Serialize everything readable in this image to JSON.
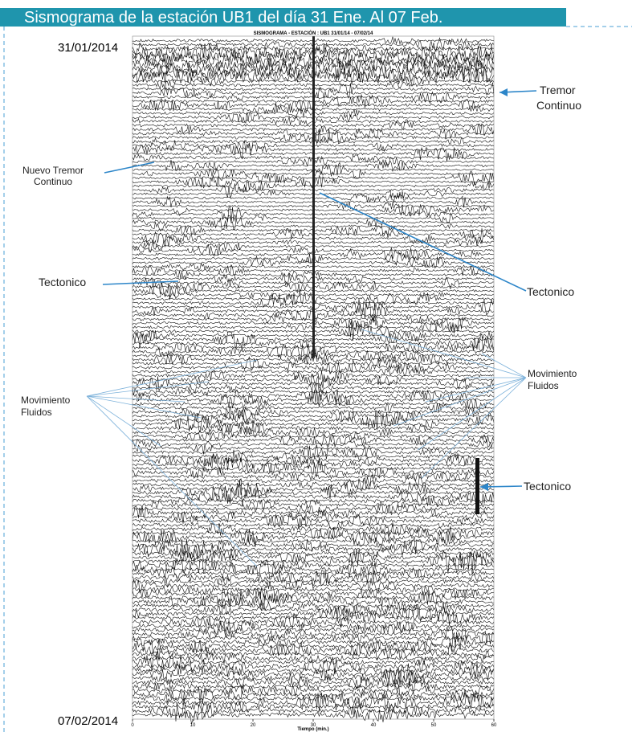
{
  "header": {
    "title": "Sismograma de la estación UB1 del día 31 Ene. Al 07 Feb."
  },
  "figure": {
    "title": "SISMOGRAMA - ESTACIÓN : UB1 31/01/14 - 07/02/14",
    "start_date": "31/01/2014",
    "end_date": "07/02/2014",
    "x_axis_label": "Tiempo (min.)",
    "x_ticks": [
      0,
      10,
      20,
      30,
      40,
      50,
      60
    ]
  },
  "annotations": [
    {
      "label": "Tremor Continuo"
    },
    {
      "label": "Nuevo Tremor Continuo"
    },
    {
      "label": "Tectonico"
    },
    {
      "label": "Tectonico"
    },
    {
      "label": "Movimiento Fluidos"
    },
    {
      "label": "Movimiento Fluidos"
    },
    {
      "label": "Tectonico"
    }
  ]
}
